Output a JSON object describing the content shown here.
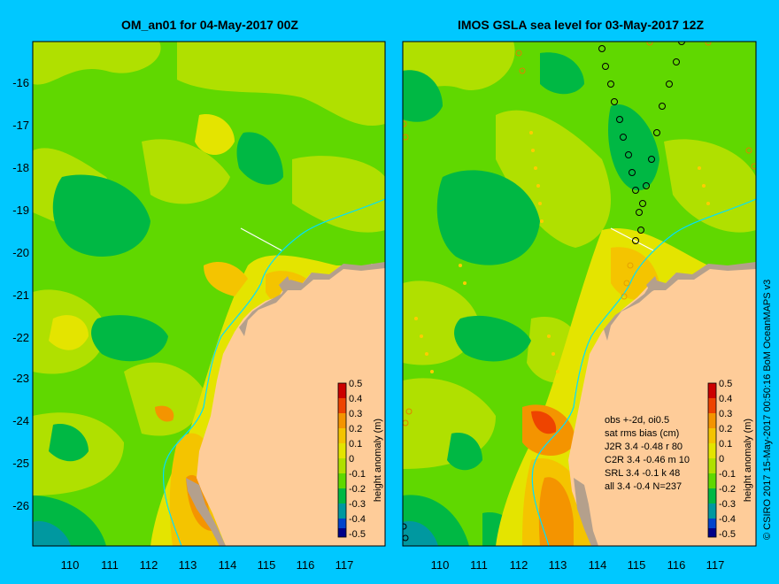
{
  "left_panel": {
    "title": "OM_an01 for 04-May-2017 00Z",
    "colorbar_label": "height anomaly (m)"
  },
  "right_panel": {
    "title": "IMOS GSLA sea level  for 03-May-2017 12Z",
    "colorbar_label": "height anomaly (m)",
    "stats_lines": [
      "obs +-2d, oi0.5",
      "sat rms bias (cm)",
      "J2R    3.4 -0.48 r 80",
      "C2R    3.4 -0.46 m 10",
      "SRL    3.4 -0.1 k 48",
      "all    3.4 -0.4 N=237"
    ]
  },
  "credit": "© CSIRO 2017   15-May-2017 00:50:16 BoM OceanMAPS v3",
  "axes": {
    "lat_ticks": [
      "-16",
      "-17",
      "-18",
      "-19",
      "-20",
      "-21",
      "-22",
      "-23",
      "-24",
      "-25",
      "-26"
    ],
    "lon_ticks": [
      "110",
      "111",
      "112",
      "113",
      "114",
      "115",
      "116",
      "117"
    ]
  },
  "colorbar_ticks": [
    "0.5",
    "0.4",
    "0.3",
    "0.2",
    "0.1",
    "0",
    "-0.1",
    "-0.2",
    "-0.3",
    "-0.4",
    "-0.5"
  ],
  "colors": {
    "background": "#00c8ff",
    "land": "#fecc99",
    "coast": "#b4a08c",
    "sea_base": "#60d800",
    "colorbar": [
      "#cc0000",
      "#ee4400",
      "#f49400",
      "#f4c400",
      "#e4e400",
      "#b0e000",
      "#60d800",
      "#00b844",
      "#0098a0",
      "#0044cc",
      "#000088"
    ]
  }
}
